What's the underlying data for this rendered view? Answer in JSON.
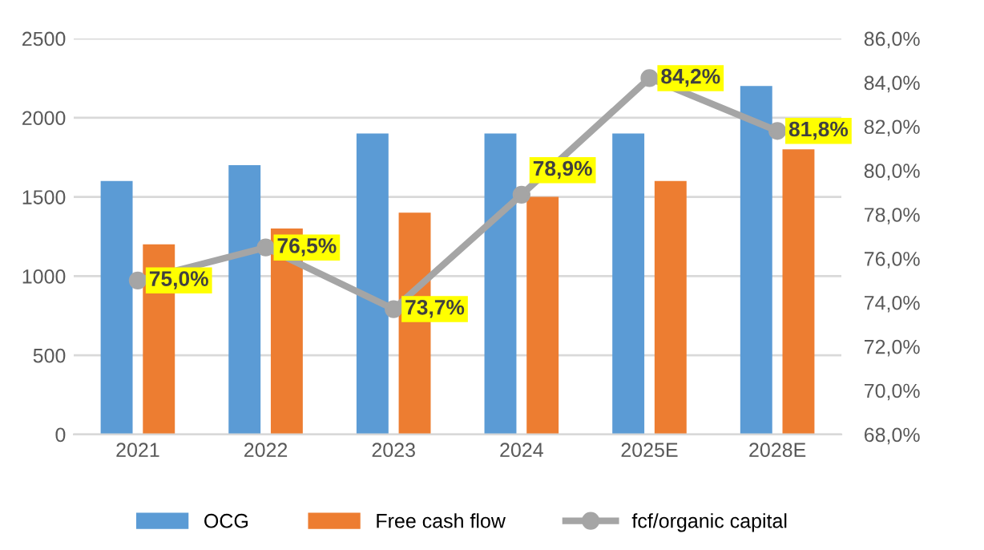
{
  "chart_data": {
    "type": "bar",
    "categories": [
      "2021",
      "2022",
      "2023",
      "2024",
      "2025E",
      "2028E"
    ],
    "series": [
      {
        "name": "OCG",
        "color": "#5b9bd5",
        "values": [
          1600,
          1700,
          1900,
          1900,
          1900,
          2200
        ]
      },
      {
        "name": "Free cash flow",
        "color": "#ed7d31",
        "values": [
          1200,
          1300,
          1400,
          1500,
          1600,
          1800
        ]
      },
      {
        "name": "fcf/organic capital",
        "type": "line",
        "axis": "y2",
        "color": "#a5a5a5",
        "marker": "circle",
        "values": [
          75.0,
          76.5,
          73.7,
          78.9,
          84.2,
          81.8
        ],
        "value_labels": [
          "75,0%",
          "76,5%",
          "73,7%",
          "78,9%",
          "84,2%",
          "81,8%"
        ]
      }
    ],
    "ylim": [
      0,
      2500
    ],
    "yticks": [
      0,
      500,
      1000,
      1500,
      2000,
      2500
    ],
    "y2lim": [
      68,
      86
    ],
    "y2ticks": [
      {
        "value": 68,
        "label": "68,0%"
      },
      {
        "value": 70,
        "label": "70,0%"
      },
      {
        "value": 72,
        "label": "72,0%"
      },
      {
        "value": 74,
        "label": "74,0%"
      },
      {
        "value": 76,
        "label": "76,0%"
      },
      {
        "value": 78,
        "label": "78,0%"
      },
      {
        "value": 80,
        "label": "80,0%"
      },
      {
        "value": 82,
        "label": "82,0%"
      },
      {
        "value": 84,
        "label": "84,0%"
      },
      {
        "value": 86,
        "label": "86,0%"
      }
    ],
    "grid": "y",
    "legend": "bottom"
  }
}
